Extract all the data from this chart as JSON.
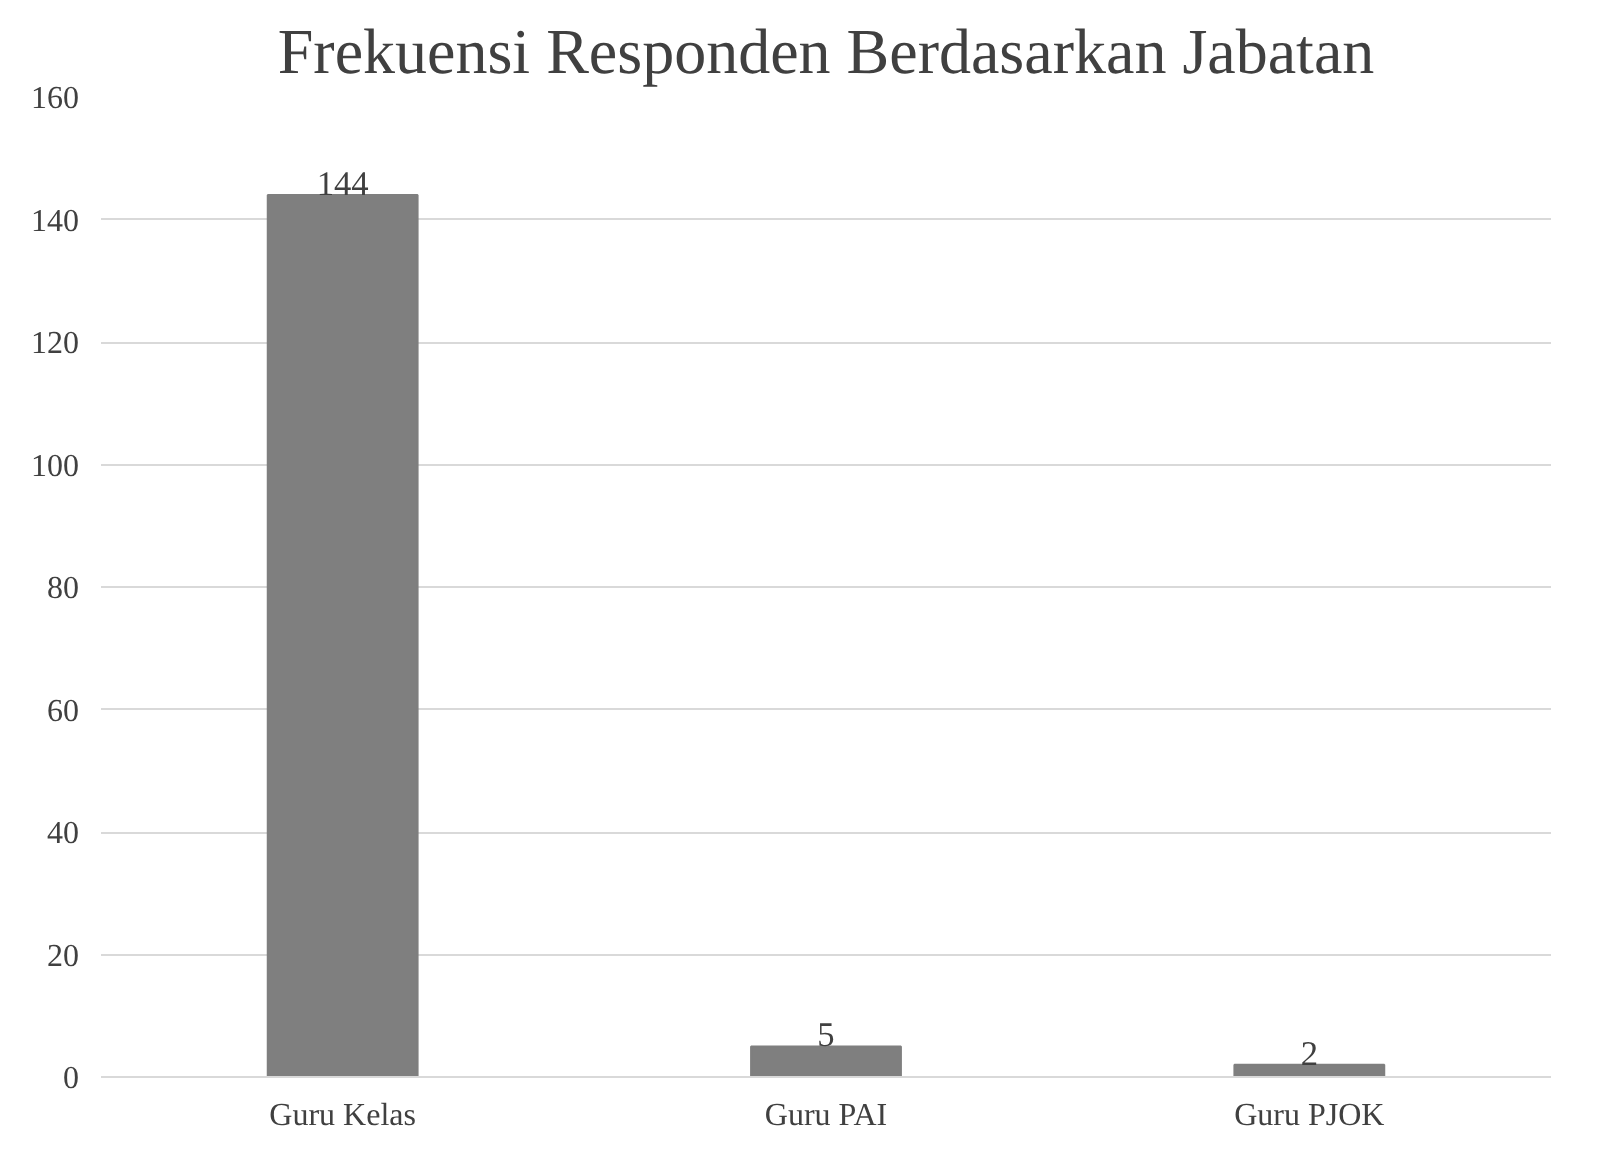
{
  "chart_data": {
    "type": "bar",
    "title": "Frekuensi Responden Berdasarkan Jabatan",
    "categories": [
      "Guru Kelas",
      "Guru PAI",
      "Guru PJOK"
    ],
    "values": [
      144,
      5,
      2
    ],
    "color": "#7f7f7f",
    "ylim": [
      0,
      160
    ],
    "yticks": [
      0,
      20,
      40,
      60,
      80,
      100,
      120,
      140,
      160
    ],
    "grid": "y",
    "data_labels": true
  }
}
